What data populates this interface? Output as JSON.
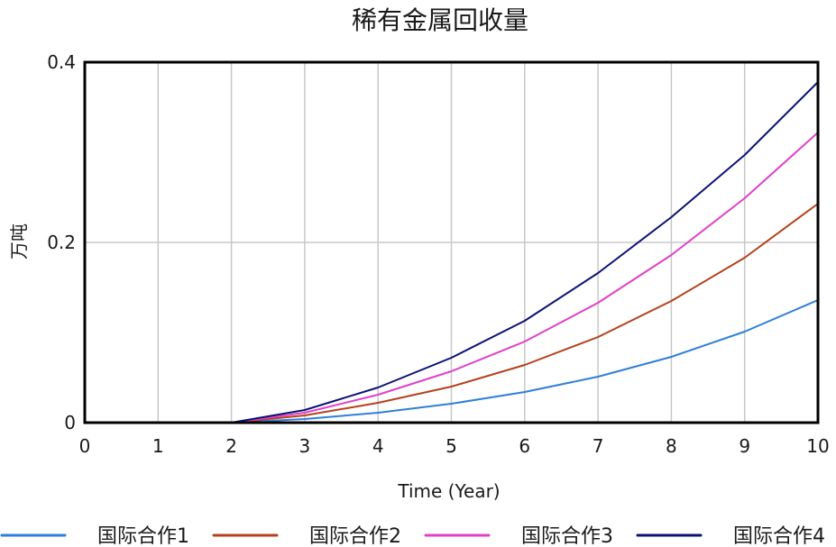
{
  "chart_data": {
    "type": "line",
    "title": "稀有金属回收量",
    "xlabel": "Time (Year)",
    "ylabel": "万吨",
    "xlim": [
      0,
      10
    ],
    "ylim": [
      0,
      0.4
    ],
    "x_ticks": [
      0,
      1,
      2,
      3,
      4,
      5,
      6,
      7,
      8,
      9,
      10
    ],
    "y_ticks": [
      0,
      0.2,
      0.4
    ],
    "y_tick_labels": [
      "0",
      "0.2",
      "0.4"
    ],
    "grid": true,
    "legend_position": "bottom",
    "x": [
      0,
      1,
      2,
      3,
      4,
      5,
      6,
      7,
      8,
      9,
      10
    ],
    "series": [
      {
        "name": "国际合作1",
        "color": "#2f7fd8",
        "values": [
          0,
          0,
          0,
          0.004,
          0.011,
          0.021,
          0.034,
          0.051,
          0.073,
          0.101,
          0.136
        ]
      },
      {
        "name": "国际合作2",
        "color": "#b5401c",
        "values": [
          0,
          0,
          0,
          0.008,
          0.022,
          0.04,
          0.064,
          0.095,
          0.135,
          0.183,
          0.243
        ]
      },
      {
        "name": "国际合作3",
        "color": "#e040c8",
        "values": [
          0,
          0,
          0,
          0.011,
          0.031,
          0.057,
          0.09,
          0.133,
          0.186,
          0.249,
          0.322
        ]
      },
      {
        "name": "国际合作4",
        "color": "#0b1275",
        "values": [
          0,
          0,
          0,
          0.014,
          0.039,
          0.072,
          0.113,
          0.166,
          0.228,
          0.297,
          0.378
        ]
      }
    ]
  }
}
